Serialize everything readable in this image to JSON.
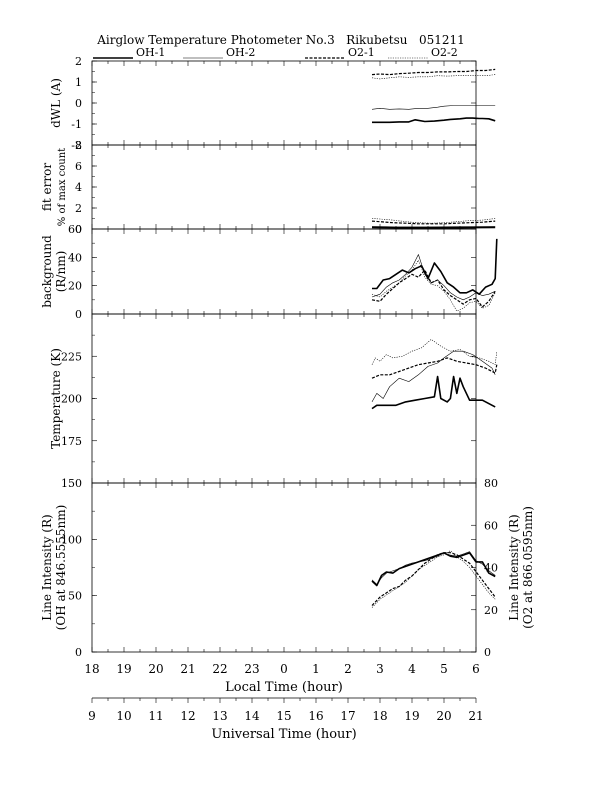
{
  "chart_data": {
    "type": "line",
    "title": "Airglow Temperature Photometer No.3   Rikubetsu   051211",
    "legend": {
      "placement": "top",
      "entries": [
        {
          "name": "OH-1",
          "style": "solid-thick"
        },
        {
          "name": "OH-2",
          "style": "solid-thin"
        },
        {
          "name": "O2-1",
          "style": "dashed-thick"
        },
        {
          "name": "O2-2",
          "style": "dotted-thin"
        }
      ]
    },
    "x_axis": {
      "label": "Local Time (hour)",
      "tick_labels": [
        "18",
        "19",
        "20",
        "21",
        "22",
        "23",
        "0",
        "1",
        "2",
        "3",
        "4",
        "5",
        "6"
      ],
      "range_hours": [
        18,
        30
      ]
    },
    "x_axis2": {
      "label": "Universal Time (hour)",
      "tick_labels": [
        "9",
        "10",
        "11",
        "12",
        "13",
        "14",
        "15",
        "16",
        "17",
        "18",
        "19",
        "20",
        "21"
      ],
      "range_hours": [
        9,
        21
      ]
    },
    "panels": [
      {
        "id": "dwl",
        "ylabel": "dWL (A)",
        "ylim": [
          -2,
          2
        ],
        "yticks": [
          "-2",
          "-1",
          "0",
          "1",
          "2"
        ],
        "series": [
          {
            "name": "OH-1",
            "x": [
              26.75,
              27.0,
              27.3,
              27.6,
              27.9,
              28.1,
              28.4,
              28.7,
              29.0,
              29.2,
              29.5,
              29.7,
              29.8,
              29.9,
              30.0,
              30.1,
              30.2,
              30.4,
              30.6
            ],
            "y": [
              -0.92,
              -0.92,
              -0.92,
              -0.9,
              -0.9,
              -0.8,
              -0.88,
              -0.86,
              -0.82,
              -0.78,
              -0.75,
              -0.72,
              -0.72,
              -0.72,
              -0.73,
              -0.74,
              -0.74,
              -0.75,
              -0.85
            ]
          },
          {
            "name": "OH-2",
            "x": [
              26.75,
              27.0,
              27.3,
              27.6,
              27.9,
              28.2,
              28.5,
              28.8,
              29.0,
              29.3,
              29.6,
              29.9,
              30.2,
              30.6
            ],
            "y": [
              -0.3,
              -0.25,
              -0.3,
              -0.28,
              -0.3,
              -0.25,
              -0.25,
              -0.2,
              -0.15,
              -0.12,
              -0.12,
              -0.12,
              -0.12,
              -0.12
            ]
          },
          {
            "name": "O2-1",
            "x": [
              26.75,
              27.0,
              27.3,
              27.6,
              27.9,
              28.2,
              28.5,
              28.8,
              29.1,
              29.4,
              29.7,
              30.0,
              30.3,
              30.6
            ],
            "y": [
              1.35,
              1.38,
              1.35,
              1.4,
              1.42,
              1.45,
              1.45,
              1.48,
              1.48,
              1.5,
              1.5,
              1.55,
              1.55,
              1.6
            ]
          },
          {
            "name": "O2-2",
            "x": [
              26.75,
              27.0,
              27.3,
              27.6,
              27.9,
              28.2,
              28.5,
              28.8,
              29.1,
              29.4,
              29.7,
              30.0,
              30.3,
              30.6
            ],
            "y": [
              1.2,
              1.15,
              1.2,
              1.25,
              1.22,
              1.25,
              1.25,
              1.3,
              1.28,
              1.3,
              1.3,
              1.32,
              1.3,
              1.35
            ]
          }
        ]
      },
      {
        "id": "fit",
        "ylabel": "fit error",
        "ylabel2": "% of max count",
        "ylim": [
          0,
          8
        ],
        "yticks": [
          "0",
          "2",
          "4",
          "6",
          "8"
        ],
        "series": [
          {
            "name": "OH-1",
            "x": [
              26.75,
              27.5,
              28.5,
              29.5,
              30.6
            ],
            "y": [
              0.15,
              0.12,
              0.12,
              0.12,
              0.15
            ]
          },
          {
            "name": "OH-2",
            "x": [
              26.75,
              27.5,
              28.5,
              29.5,
              30.6
            ],
            "y": [
              0.25,
              0.2,
              0.2,
              0.22,
              0.25
            ]
          },
          {
            "name": "O2-1",
            "x": [
              26.75,
              27.0,
              27.4,
              27.8,
              28.2,
              28.6,
              29.0,
              29.4,
              29.8,
              30.2,
              30.6
            ],
            "y": [
              0.75,
              0.7,
              0.6,
              0.55,
              0.5,
              0.5,
              0.5,
              0.55,
              0.6,
              0.65,
              0.75
            ]
          },
          {
            "name": "O2-2",
            "x": [
              26.75,
              27.0,
              27.4,
              27.8,
              28.2,
              28.6,
              29.0,
              29.4,
              29.8,
              30.2,
              30.6
            ],
            "y": [
              1.0,
              0.95,
              0.85,
              0.7,
              0.6,
              0.55,
              0.6,
              0.7,
              0.8,
              0.85,
              1.0
            ]
          }
        ]
      },
      {
        "id": "bg",
        "ylabel": "background",
        "ylabel2": "(R/nm)",
        "ylim": [
          0,
          60
        ],
        "yticks": [
          "0",
          "20",
          "40",
          "60"
        ],
        "series": [
          {
            "name": "OH-1",
            "x": [
              26.75,
              26.9,
              27.1,
              27.3,
              27.5,
              27.7,
              27.9,
              28.1,
              28.3,
              28.5,
              28.7,
              28.9,
              29.1,
              29.3,
              29.5,
              29.7,
              29.9,
              30.1,
              30.3,
              30.5,
              30.6,
              30.65
            ],
            "y": [
              18,
              18,
              24,
              25,
              28,
              31,
              29,
              32,
              34,
              25,
              36,
              30,
              22,
              19,
              15,
              15,
              17,
              14,
              19,
              21,
              25,
              53
            ]
          },
          {
            "name": "OH-2",
            "x": [
              26.75,
              27.0,
              27.2,
              27.4,
              27.6,
              27.8,
              28.0,
              28.2,
              28.4,
              28.6,
              28.8,
              29.0,
              29.2,
              29.4,
              29.6,
              29.8,
              30.0,
              30.2,
              30.4,
              30.6
            ],
            "y": [
              12,
              14,
              19,
              22,
              24,
              28,
              33,
              42,
              28,
              22,
              24,
              20,
              15,
              12,
              10,
              12,
              15,
              13,
              14,
              16
            ]
          },
          {
            "name": "O2-1",
            "x": [
              26.75,
              27.0,
              27.2,
              27.4,
              27.6,
              27.8,
              28.0,
              28.2,
              28.4,
              28.6,
              28.8,
              29.0,
              29.2,
              29.4,
              29.6,
              29.8,
              30.0,
              30.2,
              30.4,
              30.6
            ],
            "y": [
              10,
              9,
              14,
              18,
              22,
              25,
              28,
              26,
              31,
              22,
              24,
              17,
              13,
              10,
              7,
              10,
              11,
              5,
              9,
              16
            ]
          },
          {
            "name": "O2-2",
            "x": [
              26.75,
              27.0,
              27.2,
              27.4,
              27.6,
              27.8,
              28.0,
              28.2,
              28.4,
              28.6,
              28.8,
              29.0,
              29.2,
              29.4,
              29.6,
              29.8,
              30.0,
              30.2,
              30.4,
              30.6
            ],
            "y": [
              14,
              12,
              16,
              19,
              22,
              27,
              31,
              38,
              26,
              21,
              20,
              16,
              10,
              2,
              4,
              8,
              9,
              4,
              6,
              15
            ]
          }
        ]
      },
      {
        "id": "temp",
        "ylabel": "Temperature (K)",
        "ylim": [
          150,
          250
        ],
        "yticks": [
          "175",
          "200",
          "225"
        ],
        "series": [
          {
            "name": "OH-1",
            "x": [
              26.75,
              26.9,
              27.2,
              27.5,
              27.8,
              28.1,
              28.4,
              28.7,
              28.8,
              28.9,
              29.1,
              29.2,
              29.3,
              29.4,
              29.5,
              29.6,
              29.8,
              30.0,
              30.2,
              30.4,
              30.6
            ],
            "y": [
              194,
              196,
              196,
              196,
              198,
              199,
              200,
              201,
              213,
              200,
              198,
              200,
              213,
              203,
              212,
              207,
              199,
              199,
              199,
              197,
              195
            ]
          },
          {
            "name": "OH-2",
            "x": [
              26.75,
              26.9,
              27.1,
              27.3,
              27.6,
              27.9,
              28.2,
              28.5,
              28.8,
              29.0,
              29.3,
              29.6,
              29.9,
              30.2,
              30.5,
              30.6
            ],
            "y": [
              198,
              203,
              200,
              207,
              212,
              210,
              214,
              219,
              221,
              224,
              228,
              228,
              226,
              222,
              218,
              214
            ]
          },
          {
            "name": "O2-1",
            "x": [
              26.75,
              27.0,
              27.3,
              27.6,
              27.9,
              28.2,
              28.5,
              28.8,
              29.1,
              29.4,
              29.7,
              30.0,
              30.3,
              30.6,
              30.65
            ],
            "y": [
              212,
              214,
              214,
              216,
              218,
              220,
              221,
              222,
              224,
              222,
              221,
              220,
              218,
              215,
              220
            ]
          },
          {
            "name": "O2-2",
            "x": [
              26.75,
              26.85,
              27.0,
              27.2,
              27.4,
              27.7,
              28.0,
              28.3,
              28.6,
              28.9,
              29.2,
              29.5,
              29.8,
              30.1,
              30.4,
              30.6,
              30.65
            ],
            "y": [
              220,
              224,
              222,
              226,
              224,
              225,
              228,
              230,
              235,
              231,
              228,
              229,
              225,
              224,
              222,
              220,
              228
            ]
          }
        ]
      },
      {
        "id": "int",
        "ylabel": "Line Intensity (R)",
        "ylabel2": "(OH at 846.5555nm)",
        "ylim": [
          0,
          150
        ],
        "yticks": [
          "0",
          "50",
          "100",
          "150"
        ],
        "ylabel_right": "Line Intensity (R)",
        "ylabel_right2": "(O2 at 866.0595nm)",
        "ylim_right": [
          0,
          80
        ],
        "yticks_right": [
          "0",
          "20",
          "40",
          "60",
          "80"
        ],
        "series": [
          {
            "name": "OH-1",
            "axis": "left",
            "x": [
              26.75,
              26.9,
              27.05,
              27.2,
              27.4,
              27.6,
              27.8,
              28.0,
              28.2,
              28.4,
              28.6,
              28.8,
              29.0,
              29.2,
              29.4,
              29.6,
              29.8,
              30.0,
              30.2,
              30.4,
              30.6
            ],
            "y": [
              63,
              59,
              68,
              71,
              70,
              74,
              76,
              78,
              80,
              82,
              84,
              86,
              88,
              85,
              84,
              86,
              88,
              80,
              80,
              70,
              67
            ]
          },
          {
            "name": "OH-2",
            "axis": "left",
            "x": [
              26.75,
              26.9,
              27.05,
              27.2,
              27.4,
              27.6,
              27.8,
              28.0,
              28.2,
              28.4,
              28.6,
              28.8,
              29.0,
              29.2,
              29.4,
              29.6,
              29.8,
              30.0,
              30.2,
              30.4,
              30.6
            ],
            "y": [
              64,
              60,
              66,
              70,
              72,
              74,
              77,
              79,
              80,
              81,
              83,
              85,
              88,
              86,
              85,
              87,
              89,
              81,
              78,
              72,
              68
            ]
          },
          {
            "name": "O2-1",
            "axis": "right",
            "x": [
              26.75,
              27.0,
              27.2,
              27.4,
              27.6,
              27.8,
              28.0,
              28.2,
              28.4,
              28.6,
              28.8,
              29.0,
              29.2,
              29.4,
              29.6,
              29.8,
              30.0,
              30.2,
              30.4,
              30.6
            ],
            "y": [
              22,
              26,
              28,
              30,
              31,
              34,
              36,
              39,
              42,
              44,
              46,
              47,
              47,
              46,
              44,
              42,
              38,
              34,
              30,
              26
            ]
          },
          {
            "name": "O2-2",
            "axis": "right",
            "x": [
              26.75,
              27.0,
              27.2,
              27.4,
              27.6,
              27.8,
              28.0,
              28.2,
              28.4,
              28.6,
              28.8,
              29.0,
              29.2,
              29.4,
              29.6,
              29.8,
              30.0,
              30.2,
              30.4,
              30.6
            ],
            "y": [
              21,
              25,
              27,
              29,
              31,
              33,
              36,
              39,
              41,
              43,
              45,
              46,
              48,
              45,
              43,
              40,
              36,
              32,
              28,
              25
            ]
          }
        ]
      }
    ]
  }
}
